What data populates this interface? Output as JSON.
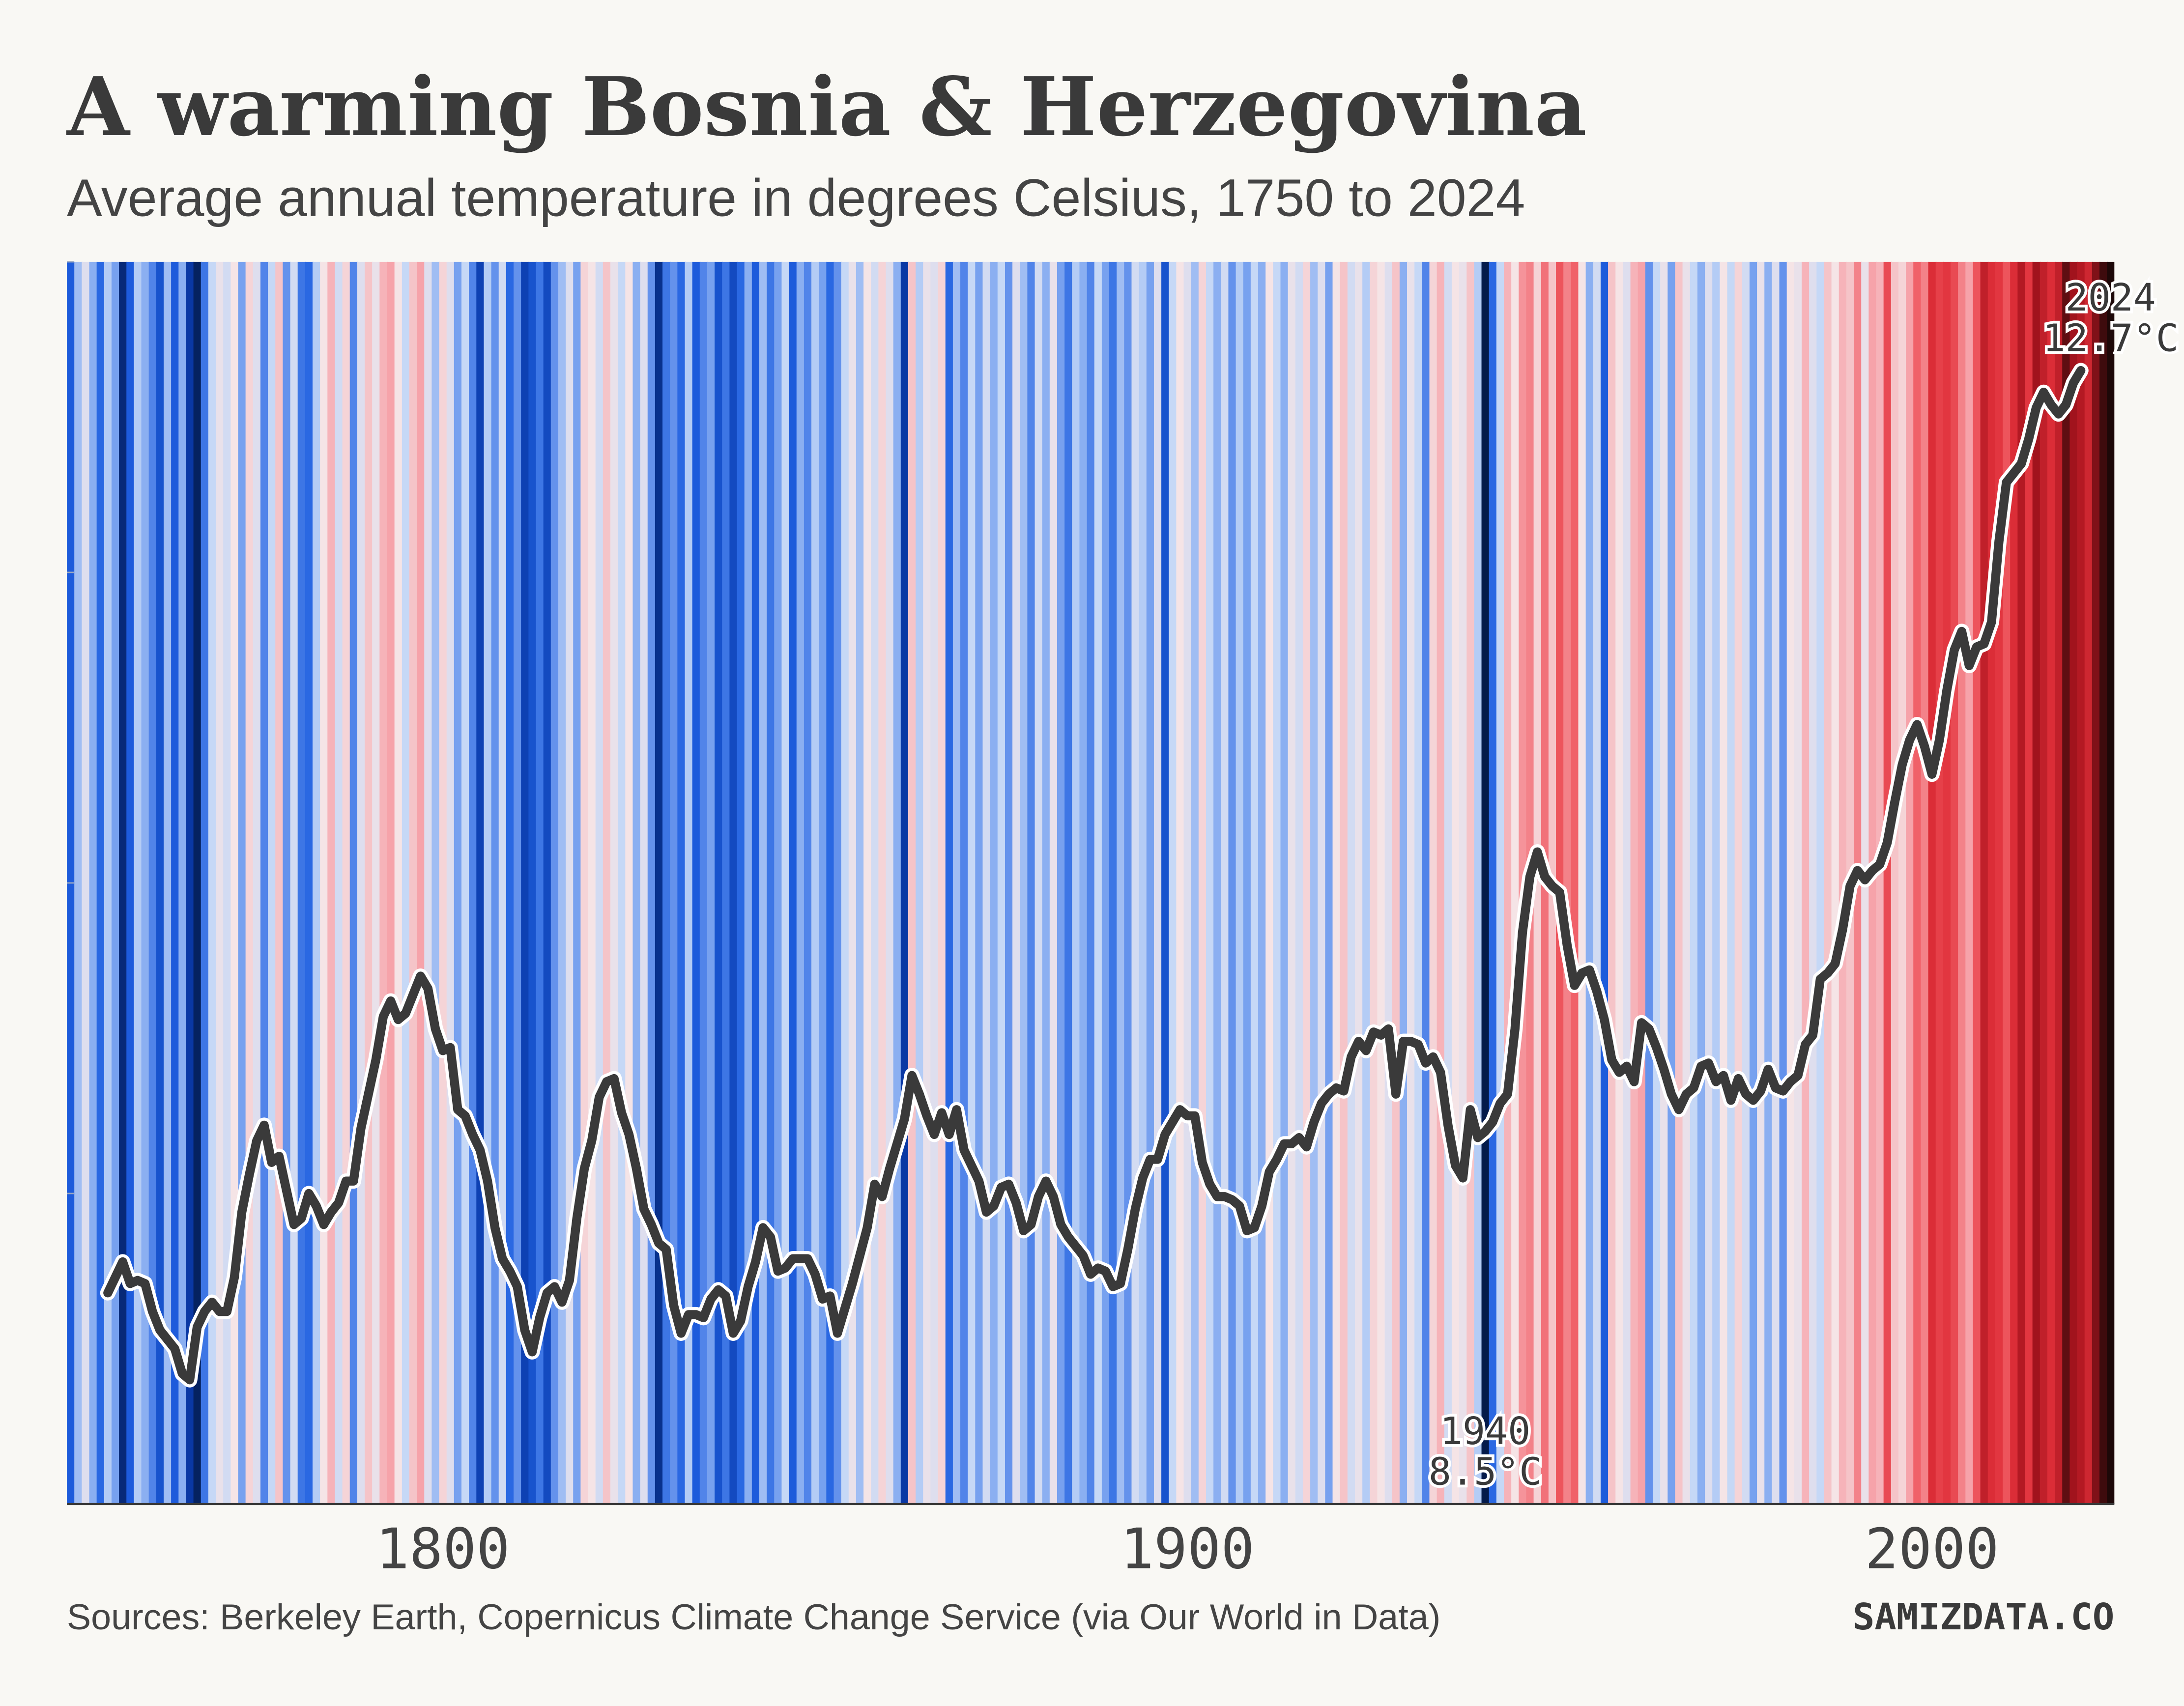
{
  "chart_data": {
    "type": "warming-stripes",
    "title": "A warming Bosnia & Herzegovina",
    "subtitle": "Average annual temperature in degrees Celsius, 1750 to 2024",
    "source": "Sources: Berkeley Earth, Copernicus Climate Change Service (via Our World in Data)",
    "brand": "SAMIZDATA.CO",
    "x": [
      1750,
      1751,
      1752,
      1753,
      1754,
      1755,
      1756,
      1757,
      1758,
      1759,
      1760,
      1761,
      1762,
      1763,
      1764,
      1765,
      1766,
      1767,
      1768,
      1769,
      1770,
      1771,
      1772,
      1773,
      1774,
      1775,
      1776,
      1777,
      1778,
      1779,
      1780,
      1781,
      1782,
      1783,
      1784,
      1785,
      1786,
      1787,
      1788,
      1789,
      1790,
      1791,
      1792,
      1793,
      1794,
      1795,
      1796,
      1797,
      1798,
      1799,
      1800,
      1801,
      1802,
      1803,
      1804,
      1805,
      1806,
      1807,
      1808,
      1809,
      1810,
      1811,
      1812,
      1813,
      1814,
      1815,
      1816,
      1817,
      1818,
      1819,
      1820,
      1821,
      1822,
      1823,
      1824,
      1825,
      1826,
      1827,
      1828,
      1829,
      1830,
      1831,
      1832,
      1833,
      1834,
      1835,
      1836,
      1837,
      1838,
      1839,
      1840,
      1841,
      1842,
      1843,
      1844,
      1845,
      1846,
      1847,
      1848,
      1849,
      1850,
      1851,
      1852,
      1853,
      1854,
      1855,
      1856,
      1857,
      1858,
      1859,
      1860,
      1861,
      1862,
      1863,
      1864,
      1865,
      1866,
      1867,
      1868,
      1869,
      1870,
      1871,
      1872,
      1873,
      1874,
      1875,
      1876,
      1877,
      1878,
      1879,
      1880,
      1881,
      1882,
      1883,
      1884,
      1885,
      1886,
      1887,
      1888,
      1889,
      1890,
      1891,
      1892,
      1893,
      1894,
      1895,
      1896,
      1897,
      1898,
      1899,
      1900,
      1901,
      1902,
      1903,
      1904,
      1905,
      1906,
      1907,
      1908,
      1909,
      1910,
      1911,
      1912,
      1913,
      1914,
      1915,
      1916,
      1917,
      1918,
      1919,
      1920,
      1921,
      1922,
      1923,
      1924,
      1925,
      1926,
      1927,
      1928,
      1929,
      1930,
      1931,
      1932,
      1933,
      1934,
      1935,
      1936,
      1937,
      1938,
      1939,
      1940,
      1941,
      1942,
      1943,
      1944,
      1945,
      1946,
      1947,
      1948,
      1949,
      1950,
      1951,
      1952,
      1953,
      1954,
      1955,
      1956,
      1957,
      1958,
      1959,
      1960,
      1961,
      1962,
      1963,
      1964,
      1965,
      1966,
      1967,
      1968,
      1969,
      1970,
      1971,
      1972,
      1973,
      1974,
      1975,
      1976,
      1977,
      1978,
      1979,
      1980,
      1981,
      1982,
      1983,
      1984,
      1985,
      1986,
      1987,
      1988,
      1989,
      1990,
      1991,
      1992,
      1993,
      1994,
      1995,
      1996,
      1997,
      1998,
      1999,
      2000,
      2001,
      2002,
      2003,
      2004,
      2005,
      2006,
      2007,
      2008,
      2009,
      2010,
      2011,
      2012,
      2013,
      2014,
      2015,
      2016,
      2017,
      2018,
      2019,
      2020,
      2021,
      2022,
      2023,
      2024
    ],
    "series": [
      {
        "style": "stripes",
        "colormap": [
          "#041a4a",
          "#0a3aa8",
          "#1f5fe0",
          "#6f9bee",
          "#c4d7f7",
          "#f5e4e6",
          "#f6a0a7",
          "#ef5a62",
          "#e0303a",
          "#a8141e",
          "#1d0808"
        ],
        "values": [
          9.3,
          10.0,
          10.4,
          9.9,
          9.4,
          10.1,
          9.8,
          8.7,
          9.3,
          10.1,
          9.9,
          9.6,
          9.2,
          10.0,
          9.3,
          9.9,
          8.9,
          8.6,
          9.5,
          10.2,
          10.5,
          10.3,
          10.6,
          9.8,
          10.7,
          10.4,
          9.6,
          10.2,
          10.8,
          9.7,
          10.3,
          9.5,
          9.4,
          10.1,
          10.6,
          10.9,
          10.3,
          10.7,
          9.6,
          10.4,
          10.8,
          10.5,
          10.9,
          11.0,
          10.6,
          10.2,
          10.8,
          11.0,
          10.4,
          10.0,
          10.7,
          10.4,
          9.8,
          10.2,
          9.6,
          9.0,
          10.1,
          9.7,
          10.3,
          9.4,
          9.7,
          9.0,
          9.2,
          9.5,
          9.1,
          9.7,
          10.0,
          10.4,
          9.8,
          10.7,
          10.6,
          10.3,
          10.8,
          10.5,
          10.2,
          10.6,
          9.9,
          10.4,
          9.7,
          8.8,
          9.5,
          9.7,
          9.4,
          10.1,
          9.3,
          9.6,
          9.8,
          9.2,
          9.5,
          9.1,
          9.4,
          9.9,
          9.3,
          10.0,
          9.5,
          9.8,
          10.2,
          9.3,
          9.9,
          9.6,
          10.1,
          9.8,
          9.4,
          9.7,
          10.2,
          10.5,
          10.0,
          10.6,
          10.3,
          10.7,
          10.4,
          9.9,
          8.9,
          10.8,
          10.1,
          10.5,
          10.4,
          10.7,
          9.4,
          10.0,
          9.6,
          10.2,
          9.8,
          10.3,
          9.9,
          10.2,
          9.7,
          10.4,
          10.0,
          9.6,
          10.3,
          9.9,
          10.5,
          9.8,
          9.5,
          10.1,
          9.9,
          9.6,
          10.2,
          9.8,
          9.5,
          10.0,
          9.7,
          10.3,
          10.1,
          9.8,
          10.4,
          9.2,
          10.2,
          10.6,
          10.4,
          10.0,
          10.7,
          10.2,
          9.9,
          10.3,
          9.7,
          10.1,
          9.8,
          10.2,
          9.9,
          10.6,
          10.2,
          9.9,
          10.5,
          10.3,
          10.7,
          10.0,
          10.4,
          9.8,
          10.6,
          10.8,
          10.3,
          10.5,
          10.1,
          10.7,
          10.6,
          10.4,
          10.8,
          9.9,
          10.5,
          10.2,
          9.6,
          10.7,
          10.9,
          10.3,
          10.6,
          10.5,
          10.8,
          10.1,
          8.5,
          9.4,
          10.2,
          10.9,
          10.6,
          11.1,
          11.2,
          10.7,
          11.3,
          10.8,
          11.5,
          11.2,
          11.4,
          10.6,
          9.9,
          10.3,
          9.3,
          10.8,
          10.6,
          10.4,
          10.9,
          11.0,
          9.7,
          10.2,
          10.5,
          9.8,
          10.8,
          10.5,
          10.2,
          9.9,
          10.4,
          10.1,
          10.6,
          10.2,
          10.7,
          10.3,
          9.8,
          10.5,
          9.9,
          10.4,
          9.7,
          10.6,
          10.5,
          10.9,
          10.4,
          10.2,
          10.8,
          10.6,
          10.9,
          10.8,
          11.2,
          10.5,
          11.0,
          10.9,
          11.6,
          10.8,
          10.7,
          11.0,
          11.4,
          11.2,
          11.9,
          11.7,
          11.8,
          11.6,
          11.2,
          11.0,
          11.5,
          12.1,
          11.9,
          11.8,
          11.5,
          11.9,
          12.2,
          11.8,
          12.3,
          12.1,
          11.9,
          12.1,
          12.5,
          12.3,
          12.2,
          12.0,
          12.4,
          12.6,
          12.7
        ]
      },
      {
        "style": "line",
        "color": "#3a3a3a",
        "halo": "#ffffff",
        "values": [
          null,
          null,
          null,
          null,
          null,
          9.68,
          9.73,
          9.78,
          9.71,
          9.72,
          9.71,
          9.62,
          9.56,
          9.53,
          9.5,
          9.42,
          9.4,
          9.57,
          9.62,
          9.65,
          9.62,
          9.62,
          9.73,
          9.94,
          10.06,
          10.17,
          10.22,
          10.1,
          10.12,
          10.01,
          9.9,
          9.92,
          10.0,
          9.96,
          9.9,
          9.94,
          9.97,
          10.04,
          10.04,
          10.21,
          10.32,
          10.43,
          10.57,
          10.62,
          10.56,
          10.58,
          10.64,
          10.7,
          10.66,
          10.53,
          10.46,
          10.47,
          10.27,
          10.25,
          10.19,
          10.14,
          10.04,
          9.89,
          9.79,
          9.75,
          9.7,
          9.56,
          9.49,
          9.6,
          9.68,
          9.7,
          9.65,
          9.72,
          9.92,
          10.08,
          10.17,
          10.31,
          10.36,
          10.37,
          10.26,
          10.19,
          10.08,
          9.95,
          9.9,
          9.84,
          9.82,
          9.64,
          9.55,
          9.61,
          9.61,
          9.6,
          9.66,
          9.69,
          9.67,
          9.55,
          9.59,
          9.7,
          9.78,
          9.89,
          9.86,
          9.75,
          9.76,
          9.79,
          9.79,
          9.79,
          9.74,
          9.66,
          9.67,
          9.55,
          9.63,
          9.71,
          9.8,
          9.89,
          10.03,
          9.99,
          10.08,
          10.16,
          10.24,
          10.38,
          10.32,
          10.25,
          10.19,
          10.26,
          10.19,
          10.27,
          10.14,
          10.09,
          10.04,
          9.94,
          9.96,
          10.02,
          10.03,
          9.97,
          9.88,
          9.9,
          9.99,
          10.04,
          9.99,
          9.9,
          9.86,
          9.83,
          9.8,
          9.74,
          9.76,
          9.75,
          9.7,
          9.71,
          9.82,
          9.95,
          10.05,
          10.11,
          10.11,
          10.19,
          10.23,
          10.27,
          10.25,
          10.25,
          10.1,
          10.03,
          9.99,
          9.99,
          9.98,
          9.96,
          9.88,
          9.89,
          9.96,
          10.07,
          10.11,
          10.16,
          10.16,
          10.18,
          10.15,
          10.23,
          10.29,
          10.32,
          10.34,
          10.33,
          10.44,
          10.49,
          10.46,
          10.52,
          10.51,
          10.53,
          10.32,
          10.49,
          10.49,
          10.48,
          10.42,
          10.44,
          10.39,
          10.22,
          10.09,
          10.05,
          10.27,
          10.18,
          10.2,
          10.23,
          10.29,
          10.32,
          10.53,
          10.84,
          11.02,
          11.1,
          11.02,
          10.99,
          10.97,
          10.8,
          10.67,
          10.71,
          10.72,
          10.65,
          10.56,
          10.43,
          10.39,
          10.41,
          10.36,
          10.55,
          10.53,
          10.47,
          10.4,
          10.32,
          10.27,
          10.32,
          10.34,
          10.41,
          10.42,
          10.36,
          10.38,
          10.3,
          10.37,
          10.32,
          10.3,
          10.33,
          10.4,
          10.34,
          10.33,
          10.36,
          10.38,
          10.48,
          10.51,
          10.69,
          10.71,
          10.74,
          10.85,
          10.99,
          11.04,
          11.01,
          11.04,
          11.06,
          11.13,
          11.26,
          11.38,
          11.46,
          11.51,
          11.44,
          11.35,
          11.46,
          11.62,
          11.75,
          11.81,
          11.7,
          11.76,
          11.77,
          11.84,
          12.1,
          12.29,
          12.32,
          12.35,
          12.43,
          12.53,
          12.58,
          12.54,
          12.51,
          12.54,
          12.61,
          12.65,
          null,
          null,
          null,
          null
        ]
      }
    ],
    "annotations": [
      {
        "x": 1940,
        "label": "8.5°C"
      },
      {
        "x": 2024,
        "label": "12.7°C"
      }
    ],
    "xlim": [
      1749.5,
      2024.5
    ],
    "xticks": [
      1800,
      1900,
      2000
    ],
    "ylim": [
      9,
      13
    ],
    "yticks": [
      9,
      10,
      11,
      12,
      13
    ]
  }
}
